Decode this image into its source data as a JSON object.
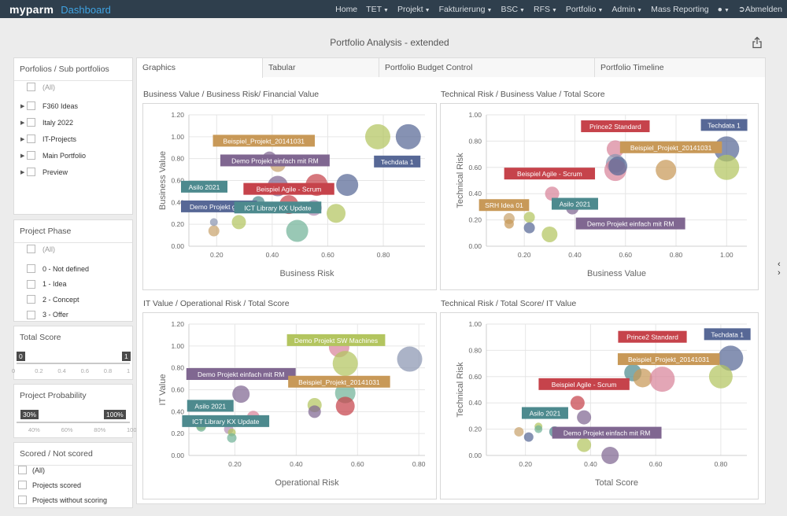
{
  "brand": {
    "name": "myparm",
    "section": "Dashboard"
  },
  "nav": [
    {
      "label": "Home",
      "caret": false
    },
    {
      "label": "TET",
      "caret": true
    },
    {
      "label": "Projekt",
      "caret": true
    },
    {
      "label": "Fakturierung",
      "caret": true
    },
    {
      "label": "BSC",
      "caret": true
    },
    {
      "label": "RFS",
      "caret": true
    },
    {
      "label": "Portfolio",
      "caret": true
    },
    {
      "label": "Admin",
      "caret": true
    },
    {
      "label": "Mass Reporting",
      "caret": false
    }
  ],
  "nav_logout": "Abmelden",
  "page_title": "Portfolio Analysis - extended",
  "filters": {
    "portfolios": {
      "title": "Porfolios / Sub portfolios",
      "all": "(All)",
      "items": [
        "F360 Ideas",
        "Italy 2022",
        "IT-Projects",
        "Main Portfolio",
        "Preview"
      ]
    },
    "phase": {
      "title": "Project Phase",
      "all": "(All)",
      "items": [
        "0 - Not defined",
        "1 - Idea",
        "2 - Concept",
        "3 - Offer"
      ]
    },
    "score": {
      "title": "Total Score",
      "min": "0",
      "max": "1",
      "range_min": 0,
      "range_max": 1,
      "ticks": [
        "0",
        "0.2",
        "0.4",
        "0.6",
        "0.8",
        "1"
      ]
    },
    "probability": {
      "title": "Project Probability",
      "min": "30%",
      "max": "100%",
      "range_min": 0.3,
      "range_max": 1,
      "ticks": [
        "40%",
        "60%",
        "80%",
        "100%"
      ]
    },
    "scored": {
      "title": "Scored / Not scored",
      "items": [
        "(All)",
        "Projects scored",
        "Projects without scoring"
      ]
    }
  },
  "tabs": [
    "Graphics",
    "Tabular",
    "Portfolio Budget Control",
    "Portfolio Timeline"
  ],
  "colors": {
    "green": "#b3c55f",
    "olive": "#c9a36e",
    "red": "#c6434b",
    "rose": "#d8839a",
    "purple": "#806791",
    "navy": "#576896",
    "teal": "#4d8a8e",
    "mint": "#72b398",
    "sand": "#c89958",
    "slate": "#8a95b2",
    "lilac": "#b18fb4",
    "orange": "#d7a05a"
  },
  "chart_data": [
    {
      "type": "scatter",
      "title": "Business Value / Business Risk/ Financial Value",
      "xlabel": "Business Risk",
      "ylabel": "Business Value",
      "xlim": [
        0.1,
        0.95
      ],
      "ylim": [
        0,
        1.2
      ],
      "xticks": [
        "0.20",
        "0.40",
        "0.60",
        "0.80"
      ],
      "xtick_values": [
        0.2,
        0.4,
        0.6,
        0.8
      ],
      "yticks": [
        "0.00",
        "0.20",
        "0.40",
        "0.60",
        "0.80",
        "1.00",
        "1.20"
      ],
      "ytick_values": [
        0,
        0.2,
        0.4,
        0.6,
        0.8,
        1.0,
        1.2
      ],
      "points": [
        {
          "x": 0.19,
          "y": 0.14,
          "size": 7,
          "color": "olive",
          "label": ""
        },
        {
          "x": 0.19,
          "y": 0.22,
          "size": 5,
          "color": "slate",
          "label": ""
        },
        {
          "x": 0.28,
          "y": 0.22,
          "size": 9,
          "color": "green",
          "label": ""
        },
        {
          "x": 0.42,
          "y": 0.55,
          "size": 13,
          "color": "purple",
          "label": "Demo Projekt gross"
        },
        {
          "x": 0.42,
          "y": 0.75,
          "size": 10,
          "color": "olive",
          "label": "Beispiel_Projekt_20141031"
        },
        {
          "x": 0.49,
          "y": 0.14,
          "size": 14,
          "color": "mint",
          "label": "ICT Library KX Update"
        },
        {
          "x": 0.46,
          "y": 0.38,
          "size": 12,
          "color": "red",
          "label": ""
        },
        {
          "x": 0.56,
          "y": 0.56,
          "size": 14,
          "color": "red",
          "label": "Beispiel Agile - Scrum"
        },
        {
          "x": 0.55,
          "y": 0.35,
          "size": 10,
          "color": "lilac",
          "label": ""
        },
        {
          "x": 0.63,
          "y": 0.3,
          "size": 12,
          "color": "green",
          "label": ""
        },
        {
          "x": 0.67,
          "y": 0.56,
          "size": 14,
          "color": "navy",
          "label": ""
        },
        {
          "x": 0.35,
          "y": 0.4,
          "size": 8,
          "color": "teal",
          "label": "Asilo 2021"
        },
        {
          "x": 0.78,
          "y": 1.0,
          "size": 16,
          "color": "green",
          "label": ""
        },
        {
          "x": 0.89,
          "y": 1.0,
          "size": 16,
          "color": "navy",
          "label": "Techdata 1"
        },
        {
          "x": 0.39,
          "y": 0.8,
          "size": 9,
          "color": "purple",
          "label": "Demo Projekt einfach mit RM"
        }
      ],
      "annotations": [
        {
          "text": "Beispiel_Projekt_20141031",
          "color": "sand",
          "x": 0.37,
          "y": 0.96
        },
        {
          "text": "Demo Projekt einfach mit RM",
          "color": "purple",
          "x": 0.41,
          "y": 0.78
        },
        {
          "text": "Techdata 1",
          "color": "navy",
          "x": 0.85,
          "y": 0.77
        },
        {
          "text": "Asilo 2021",
          "color": "teal",
          "x": 0.15,
          "y": 0.54
        },
        {
          "text": "Beispiel Agile - Scrum",
          "color": "red",
          "x": 0.46,
          "y": 0.52
        },
        {
          "text": "Demo Projekt gross",
          "color": "navy",
          "x": 0.17,
          "y": 0.36
        },
        {
          "text": "ICT Library KX Update",
          "color": "teal",
          "x": 0.42,
          "y": 0.35
        }
      ]
    },
    {
      "type": "scatter",
      "title": "Technical Risk / Business Value / Total Score",
      "xlabel": "Business Value",
      "ylabel": "Technical Risk",
      "xlim": [
        0.05,
        1.08
      ],
      "ylim": [
        0,
        1.0
      ],
      "xticks": [
        "0.20",
        "0.40",
        "0.60",
        "0.80",
        "1.00"
      ],
      "xtick_values": [
        0.2,
        0.4,
        0.6,
        0.8,
        1.0
      ],
      "yticks": [
        "0.00",
        "0.20",
        "0.40",
        "0.60",
        "0.80",
        "1.00"
      ],
      "ytick_values": [
        0,
        0.2,
        0.4,
        0.6,
        0.8,
        1.0
      ],
      "points": [
        {
          "x": 0.14,
          "y": 0.21,
          "size": 7,
          "color": "olive",
          "label": ""
        },
        {
          "x": 0.14,
          "y": 0.17,
          "size": 6,
          "color": "sand",
          "label": ""
        },
        {
          "x": 0.22,
          "y": 0.22,
          "size": 7,
          "color": "green",
          "label": ""
        },
        {
          "x": 0.22,
          "y": 0.14,
          "size": 7,
          "color": "navy",
          "label": ""
        },
        {
          "x": 0.31,
          "y": 0.4,
          "size": 9,
          "color": "rose",
          "label": ""
        },
        {
          "x": 0.3,
          "y": 0.09,
          "size": 10,
          "color": "green",
          "label": ""
        },
        {
          "x": 0.39,
          "y": 0.29,
          "size": 8,
          "color": "purple",
          "label": ""
        },
        {
          "x": 0.56,
          "y": 0.74,
          "size": 11,
          "color": "rose",
          "label": ""
        },
        {
          "x": 0.56,
          "y": 0.63,
          "size": 12,
          "color": "slate",
          "label": ""
        },
        {
          "x": 0.56,
          "y": 0.58,
          "size": 14,
          "color": "rose",
          "label": ""
        },
        {
          "x": 0.57,
          "y": 0.61,
          "size": 12,
          "color": "navy",
          "label": ""
        },
        {
          "x": 0.76,
          "y": 0.58,
          "size": 13,
          "color": "sand",
          "label": ""
        },
        {
          "x": 1.0,
          "y": 0.74,
          "size": 16,
          "color": "navy",
          "label": ""
        },
        {
          "x": 1.0,
          "y": 0.6,
          "size": 16,
          "color": "green",
          "label": ""
        }
      ],
      "annotations": [
        {
          "text": "Prince2 Standard",
          "color": "red",
          "x": 0.56,
          "y": 0.91
        },
        {
          "text": "Techdata 1",
          "color": "navy",
          "x": 0.99,
          "y": 0.92
        },
        {
          "text": "Beispiel_Projekt_20141031",
          "color": "sand",
          "x": 0.78,
          "y": 0.75
        },
        {
          "text": "Beispiel Agile - Scrum",
          "color": "red",
          "x": 0.3,
          "y": 0.55
        },
        {
          "text": "SRH Idea 01",
          "color": "sand",
          "x": 0.12,
          "y": 0.31
        },
        {
          "text": "Asilo 2021",
          "color": "teal",
          "x": 0.4,
          "y": 0.32
        },
        {
          "text": "Demo Projekt einfach mit RM",
          "color": "purple",
          "x": 0.62,
          "y": 0.17
        }
      ]
    },
    {
      "type": "scatter",
      "title": "IT Value / Operational Risk / Total Score",
      "xlabel": "Operational Risk",
      "ylabel": "IT Value",
      "xlim": [
        0.05,
        0.82
      ],
      "ylim": [
        0,
        1.2
      ],
      "xticks": [
        "0.20",
        "0.40",
        "0.60",
        "0.80"
      ],
      "xtick_values": [
        0.2,
        0.4,
        0.6,
        0.8
      ],
      "yticks": [
        "0.00",
        "0.20",
        "0.40",
        "0.60",
        "0.80",
        "1.00",
        "1.20"
      ],
      "ytick_values": [
        0,
        0.2,
        0.4,
        0.6,
        0.8,
        1.0,
        1.2
      ],
      "points": [
        {
          "x": 0.09,
          "y": 0.28,
          "size": 7,
          "color": "green",
          "label": ""
        },
        {
          "x": 0.09,
          "y": 0.26,
          "size": 6,
          "color": "mint",
          "label": ""
        },
        {
          "x": 0.18,
          "y": 0.24,
          "size": 6,
          "color": "lilac",
          "label": ""
        },
        {
          "x": 0.19,
          "y": 0.21,
          "size": 5,
          "color": "green",
          "label": ""
        },
        {
          "x": 0.19,
          "y": 0.16,
          "size": 6,
          "color": "mint",
          "label": ""
        },
        {
          "x": 0.22,
          "y": 0.56,
          "size": 11,
          "color": "purple",
          "label": ""
        },
        {
          "x": 0.26,
          "y": 0.35,
          "size": 8,
          "color": "rose",
          "label": ""
        },
        {
          "x": 0.26,
          "y": 0.31,
          "size": 6,
          "color": "teal",
          "label": ""
        },
        {
          "x": 0.46,
          "y": 0.46,
          "size": 9,
          "color": "green",
          "label": ""
        },
        {
          "x": 0.46,
          "y": 0.4,
          "size": 8,
          "color": "purple",
          "label": ""
        },
        {
          "x": 0.54,
          "y": 0.99,
          "size": 13,
          "color": "rose",
          "label": ""
        },
        {
          "x": 0.56,
          "y": 0.84,
          "size": 16,
          "color": "green",
          "label": ""
        },
        {
          "x": 0.56,
          "y": 0.57,
          "size": 13,
          "color": "mint",
          "label": ""
        },
        {
          "x": 0.56,
          "y": 0.45,
          "size": 12,
          "color": "red",
          "label": ""
        },
        {
          "x": 0.77,
          "y": 0.88,
          "size": 16,
          "color": "slate",
          "label": ""
        }
      ],
      "annotations": [
        {
          "text": "Demo Projekt SW Machines",
          "color": "green",
          "x": 0.53,
          "y": 1.05
        },
        {
          "text": "Demo Projekt einfach mit RM",
          "color": "purple",
          "x": 0.22,
          "y": 0.74
        },
        {
          "text": "Beispiel_Projekt_20141031",
          "color": "sand",
          "x": 0.54,
          "y": 0.67
        },
        {
          "text": "Asilo 2021",
          "color": "teal",
          "x": 0.12,
          "y": 0.45
        },
        {
          "text": "ICT Library KX Update",
          "color": "teal",
          "x": 0.17,
          "y": 0.31
        }
      ]
    },
    {
      "type": "scatter",
      "title": "Technical Risk / Total Score/ IT Value",
      "xlabel": "Total Score",
      "ylabel": "Technical Risk",
      "xlim": [
        0.08,
        0.88
      ],
      "ylim": [
        0,
        1.0
      ],
      "xticks": [
        "0.20",
        "0.40",
        "0.60",
        "0.80"
      ],
      "xtick_values": [
        0.2,
        0.4,
        0.6,
        0.8
      ],
      "yticks": [
        "0.00",
        "0.20",
        "0.40",
        "0.60",
        "0.80",
        "1.00"
      ],
      "ytick_values": [
        0,
        0.2,
        0.4,
        0.6,
        0.8,
        1.0
      ],
      "points": [
        {
          "x": 0.18,
          "y": 0.18,
          "size": 6,
          "color": "olive",
          "label": ""
        },
        {
          "x": 0.21,
          "y": 0.14,
          "size": 6,
          "color": "navy",
          "label": ""
        },
        {
          "x": 0.24,
          "y": 0.22,
          "size": 5,
          "color": "green",
          "label": ""
        },
        {
          "x": 0.24,
          "y": 0.2,
          "size": 5,
          "color": "mint",
          "label": ""
        },
        {
          "x": 0.29,
          "y": 0.18,
          "size": 7,
          "color": "teal",
          "label": ""
        },
        {
          "x": 0.36,
          "y": 0.4,
          "size": 9,
          "color": "red",
          "label": ""
        },
        {
          "x": 0.38,
          "y": 0.29,
          "size": 9,
          "color": "purple",
          "label": ""
        },
        {
          "x": 0.38,
          "y": 0.08,
          "size": 9,
          "color": "green",
          "label": ""
        },
        {
          "x": 0.46,
          "y": 0.0,
          "size": 11,
          "color": "purple",
          "label": ""
        },
        {
          "x": 0.53,
          "y": 0.63,
          "size": 11,
          "color": "teal",
          "label": ""
        },
        {
          "x": 0.56,
          "y": 0.59,
          "size": 12,
          "color": "sand",
          "label": ""
        },
        {
          "x": 0.62,
          "y": 0.58,
          "size": 16,
          "color": "rose",
          "label": ""
        },
        {
          "x": 0.83,
          "y": 0.74,
          "size": 16,
          "color": "navy",
          "label": ""
        },
        {
          "x": 0.8,
          "y": 0.6,
          "size": 15,
          "color": "green",
          "label": ""
        }
      ],
      "annotations": [
        {
          "text": "Prince2 Standard",
          "color": "red",
          "x": 0.59,
          "y": 0.9
        },
        {
          "text": "Techdata 1",
          "color": "navy",
          "x": 0.82,
          "y": 0.92
        },
        {
          "text": "Beispiel_Projekt_20141031",
          "color": "sand",
          "x": 0.64,
          "y": 0.73
        },
        {
          "text": "Beispiel Agile - Scrum",
          "color": "red",
          "x": 0.38,
          "y": 0.54
        },
        {
          "text": "Asilo 2021",
          "color": "teal",
          "x": 0.26,
          "y": 0.32
        },
        {
          "text": "Demo Projekt einfach mit RM",
          "color": "purple",
          "x": 0.45,
          "y": 0.17
        }
      ]
    }
  ]
}
